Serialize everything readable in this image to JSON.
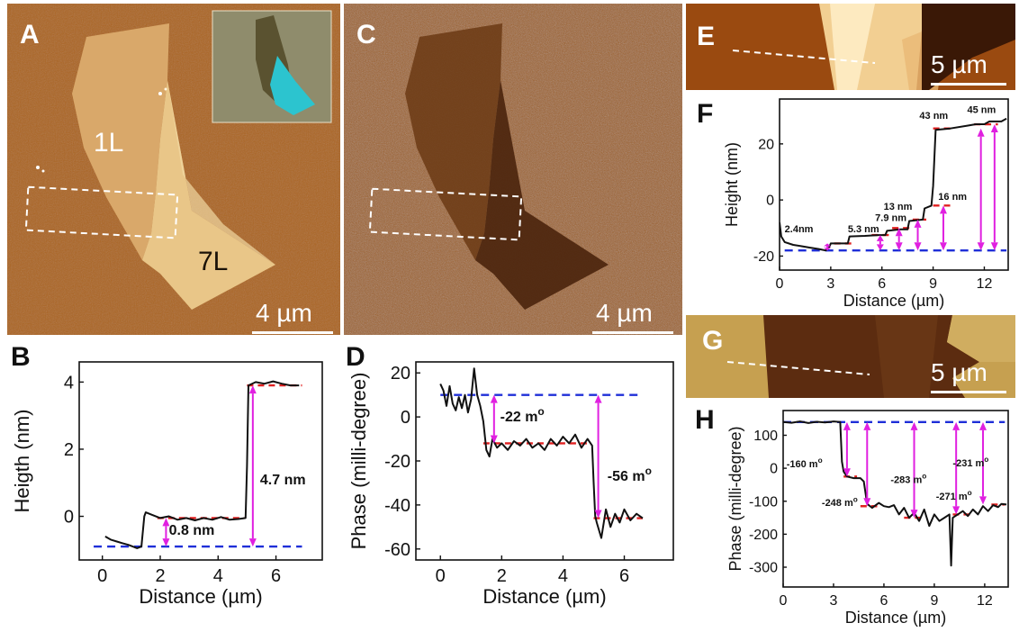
{
  "panels": {
    "A": {
      "label": "A",
      "scale": "4 µm",
      "region_1": "1L",
      "region_2": "7L"
    },
    "C": {
      "label": "C",
      "scale": "4 µm"
    },
    "E": {
      "label": "E",
      "scale": "5 µm"
    },
    "G": {
      "label": "G",
      "scale": "5 µm"
    },
    "B": {
      "label": "B"
    },
    "D": {
      "label": "D"
    },
    "F": {
      "label": "F"
    },
    "H": {
      "label": "H"
    }
  },
  "chart_data": [
    {
      "id": "B",
      "type": "line",
      "xlabel": "Distance (µm)",
      "ylabel": "Heigth (nm)",
      "xlim": [
        -0.8,
        7.6
      ],
      "ylim": [
        -1.3,
        4.6
      ],
      "xticks": [
        0,
        2,
        4,
        6
      ],
      "yticks": [
        0,
        2,
        4
      ],
      "series": [
        {
          "values": [
            [
              0.1,
              -0.6
            ],
            [
              0.3,
              -0.7
            ],
            [
              0.5,
              -0.75
            ],
            [
              0.7,
              -0.8
            ],
            [
              0.9,
              -0.85
            ],
            [
              1.05,
              -0.9
            ],
            [
              1.2,
              -0.95
            ],
            [
              1.35,
              -0.9
            ],
            [
              1.45,
              0.0
            ],
            [
              1.5,
              0.12
            ],
            [
              1.7,
              0.05
            ],
            [
              2.0,
              -0.05
            ],
            [
              2.3,
              0.0
            ],
            [
              2.6,
              -0.1
            ],
            [
              2.9,
              -0.05
            ],
            [
              3.2,
              -0.12
            ],
            [
              3.5,
              -0.05
            ],
            [
              3.8,
              -0.1
            ],
            [
              4.1,
              -0.02
            ],
            [
              4.4,
              -0.1
            ],
            [
              4.7,
              -0.08
            ],
            [
              4.95,
              -0.05
            ],
            [
              5.0,
              1.5
            ],
            [
              5.05,
              3.9
            ],
            [
              5.3,
              4.0
            ],
            [
              5.6,
              3.95
            ],
            [
              5.9,
              4.02
            ],
            [
              6.2,
              3.95
            ],
            [
              6.5,
              3.9
            ],
            [
              6.8,
              3.9
            ]
          ]
        }
      ],
      "reference_lines": [
        {
          "style": "blue-dashed",
          "y": -0.9,
          "x": [
            -0.3,
            6.9
          ]
        },
        {
          "style": "red-dashed",
          "y": -0.05,
          "x": [
            1.9,
            4.9
          ]
        },
        {
          "style": "red-dashed",
          "y": 3.9,
          "x": [
            5.0,
            6.9
          ]
        }
      ],
      "arrows": [
        {
          "x": 2.2,
          "y": [
            -0.9,
            -0.05
          ]
        },
        {
          "x": 5.2,
          "y": [
            -0.9,
            3.9
          ]
        }
      ],
      "annotations": [
        {
          "text": "0.8 nm",
          "x": 2.3,
          "y": -0.55
        },
        {
          "text": "4.7 nm",
          "x": 5.45,
          "y": 0.95
        }
      ]
    },
    {
      "id": "D",
      "type": "line",
      "xlabel": "Distance (µm)",
      "ylabel": "Phase (milli-degree)",
      "xlim": [
        -0.8,
        7.6
      ],
      "ylim": [
        -65,
        25
      ],
      "xticks": [
        0,
        2,
        4,
        6
      ],
      "yticks": [
        -60,
        -40,
        -20,
        0,
        20
      ],
      "series": [
        {
          "values": [
            [
              0.0,
              15
            ],
            [
              0.1,
              12
            ],
            [
              0.2,
              5
            ],
            [
              0.3,
              14
            ],
            [
              0.4,
              6
            ],
            [
              0.5,
              3
            ],
            [
              0.6,
              9
            ],
            [
              0.7,
              4
            ],
            [
              0.8,
              10
            ],
            [
              0.9,
              2
            ],
            [
              1.0,
              8
            ],
            [
              1.1,
              22
            ],
            [
              1.2,
              10
            ],
            [
              1.3,
              5
            ],
            [
              1.4,
              -2
            ],
            [
              1.5,
              -15
            ],
            [
              1.6,
              -18
            ],
            [
              1.7,
              -10
            ],
            [
              1.85,
              -14
            ],
            [
              2.0,
              -12
            ],
            [
              2.2,
              -15
            ],
            [
              2.4,
              -11
            ],
            [
              2.6,
              -13
            ],
            [
              2.8,
              -10
            ],
            [
              3.0,
              -14
            ],
            [
              3.2,
              -12
            ],
            [
              3.4,
              -15
            ],
            [
              3.6,
              -10
            ],
            [
              3.8,
              -13
            ],
            [
              4.0,
              -9
            ],
            [
              4.2,
              -12
            ],
            [
              4.4,
              -8
            ],
            [
              4.6,
              -14
            ],
            [
              4.8,
              -10
            ],
            [
              4.95,
              -13
            ],
            [
              5.0,
              -30
            ],
            [
              5.05,
              -45
            ],
            [
              5.1,
              -48
            ],
            [
              5.25,
              -55
            ],
            [
              5.4,
              -42
            ],
            [
              5.55,
              -50
            ],
            [
              5.7,
              -44
            ],
            [
              5.85,
              -48
            ],
            [
              6.0,
              -42
            ],
            [
              6.2,
              -47
            ],
            [
              6.4,
              -44
            ],
            [
              6.6,
              -46
            ]
          ]
        }
      ],
      "reference_lines": [
        {
          "style": "blue-dashed",
          "y": 10,
          "x": [
            0.0,
            6.6
          ]
        },
        {
          "style": "red-dashed",
          "y": -12,
          "x": [
            1.4,
            4.9
          ]
        },
        {
          "style": "red-dashed",
          "y": -46,
          "x": [
            5.0,
            6.6
          ]
        }
      ],
      "arrows": [
        {
          "x": 1.75,
          "y": [
            -12,
            10
          ]
        },
        {
          "x": 5.15,
          "y": [
            -46,
            10
          ]
        }
      ],
      "annotations": [
        {
          "text": "-22 m",
          "sup": "o",
          "x": 1.95,
          "y": -2
        },
        {
          "text": "-56 m",
          "sup": "o",
          "x": 5.45,
          "y": -29
        }
      ]
    },
    {
      "id": "F",
      "type": "line",
      "xlabel": "Distance (µm)",
      "ylabel": "Height (nm)",
      "xlim": [
        0,
        13.4
      ],
      "ylim": [
        -25,
        36
      ],
      "xticks": [
        0,
        3,
        6,
        9,
        12
      ],
      "yticks": [
        -20,
        0,
        20
      ],
      "series": [
        {
          "values": [
            [
              0,
              -8
            ],
            [
              0.1,
              -13
            ],
            [
              0.3,
              -15
            ],
            [
              0.8,
              -16
            ],
            [
              1.3,
              -16.5
            ],
            [
              1.8,
              -17
            ],
            [
              2.3,
              -17.5
            ],
            [
              2.7,
              -18
            ],
            [
              2.9,
              -17
            ],
            [
              3.0,
              -15.5
            ],
            [
              3.6,
              -15.5
            ],
            [
              4.0,
              -15.5
            ],
            [
              4.1,
              -13
            ],
            [
              5.0,
              -12.8
            ],
            [
              5.8,
              -12.5
            ],
            [
              6.2,
              -12.5
            ],
            [
              6.3,
              -11
            ],
            [
              7.1,
              -10.5
            ],
            [
              7.5,
              -10.5
            ],
            [
              7.6,
              -7.5
            ],
            [
              8.4,
              -7
            ],
            [
              8.5,
              -3
            ],
            [
              8.9,
              -2
            ],
            [
              9.0,
              5
            ],
            [
              9.15,
              25
            ],
            [
              10.0,
              25.5
            ],
            [
              11.0,
              26.5
            ],
            [
              11.5,
              27
            ],
            [
              12.0,
              27
            ],
            [
              12.3,
              28
            ],
            [
              13.0,
              28
            ],
            [
              13.3,
              29
            ]
          ]
        }
      ],
      "reference_lines": [
        {
          "style": "blue-dashed",
          "y": -18,
          "x": [
            0.3,
            13.3
          ]
        },
        {
          "style": "red-dashed",
          "y": -15.5,
          "x": [
            3.2,
            4.3
          ]
        },
        {
          "style": "red-dashed",
          "y": -12.5,
          "x": [
            5.4,
            6.6
          ]
        },
        {
          "style": "red-dashed",
          "y": -10,
          "x": [
            6.6,
            7.8
          ]
        },
        {
          "style": "red-dashed",
          "y": -7,
          "x": [
            7.8,
            8.6
          ]
        },
        {
          "style": "red-dashed",
          "y": -2,
          "x": [
            9.0,
            10.0
          ]
        },
        {
          "style": "red-dashed",
          "y": 25.5,
          "x": [
            9.0,
            10.0
          ]
        },
        {
          "style": "red-dashed",
          "y": 27,
          "x": [
            11.4,
            12.8
          ]
        }
      ],
      "arrows": [
        {
          "x": 2.8,
          "y": [
            -18,
            -15.5
          ]
        },
        {
          "x": 5.9,
          "y": [
            -18,
            -12.5
          ]
        },
        {
          "x": 7.0,
          "y": [
            -18,
            -10
          ]
        },
        {
          "x": 8.1,
          "y": [
            -18,
            -7
          ]
        },
        {
          "x": 9.6,
          "y": [
            -18,
            -2
          ]
        },
        {
          "x": 11.8,
          "y": [
            -18,
            25.5
          ]
        },
        {
          "x": 12.6,
          "y": [
            -18,
            27
          ]
        }
      ],
      "annotations": [
        {
          "text": "2.4nm",
          "x": 0.3,
          "y": -11.5
        },
        {
          "text": "5.3 nm",
          "x": 4.0,
          "y": -11.5
        },
        {
          "text": "7.9 nm",
          "x": 5.6,
          "y": -7.5
        },
        {
          "text": "13 nm",
          "x": 6.1,
          "y": -3.5
        },
        {
          "text": "16 nm",
          "x": 9.3,
          "y": 0
        },
        {
          "text": "43 nm",
          "x": 8.2,
          "y": 29
        },
        {
          "text": "45 nm",
          "x": 11.0,
          "y": 31
        }
      ]
    },
    {
      "id": "H",
      "type": "line",
      "xlabel": "Distance (µm)",
      "ylabel": "Phase (milli-degree)",
      "xlim": [
        0,
        13.4
      ],
      "ylim": [
        -360,
        175
      ],
      "xticks": [
        0,
        3,
        6,
        9,
        12
      ],
      "yticks": [
        -300,
        -200,
        -100,
        0,
        100
      ],
      "series": [
        {
          "values": [
            [
              0.0,
              140
            ],
            [
              0.5,
              138
            ],
            [
              1.0,
              142
            ],
            [
              1.5,
              137
            ],
            [
              2.0,
              141
            ],
            [
              2.5,
              139
            ],
            [
              3.0,
              142
            ],
            [
              3.4,
              140
            ],
            [
              3.5,
              20
            ],
            [
              3.6,
              -10
            ],
            [
              3.8,
              -25
            ],
            [
              4.2,
              -30
            ],
            [
              4.6,
              -30
            ],
            [
              4.8,
              -40
            ],
            [
              5.0,
              -108
            ],
            [
              5.3,
              -120
            ],
            [
              5.7,
              -105
            ],
            [
              6.0,
              -115
            ],
            [
              6.3,
              -118
            ],
            [
              6.6,
              -112
            ],
            [
              6.9,
              -140
            ],
            [
              7.2,
              -120
            ],
            [
              7.5,
              -150
            ],
            [
              7.8,
              -135
            ],
            [
              8.1,
              -160
            ],
            [
              8.4,
              -125
            ],
            [
              8.7,
              -175
            ],
            [
              9.0,
              -140
            ],
            [
              9.3,
              -160
            ],
            [
              9.6,
              -150
            ],
            [
              9.9,
              -140
            ],
            [
              10.0,
              -295
            ],
            [
              10.1,
              -150
            ],
            [
              10.4,
              -140
            ],
            [
              10.7,
              -130
            ],
            [
              11.0,
              -145
            ],
            [
              11.3,
              -125
            ],
            [
              11.6,
              -140
            ],
            [
              11.9,
              -115
            ],
            [
              12.2,
              -130
            ],
            [
              12.5,
              -112
            ],
            [
              12.8,
              -118
            ],
            [
              13.0,
              -108
            ],
            [
              13.3,
              -110
            ]
          ]
        }
      ],
      "reference_lines": [
        {
          "style": "blue-dashed",
          "y": 140,
          "x": [
            0.0,
            13.2
          ]
        },
        {
          "style": "red-dashed",
          "y": -25,
          "x": [
            3.6,
            4.4
          ]
        },
        {
          "style": "red-dashed",
          "y": -115,
          "x": [
            4.6,
            5.6
          ]
        },
        {
          "style": "red-dashed",
          "y": -150,
          "x": [
            7.2,
            8.4
          ]
        },
        {
          "style": "red-dashed",
          "y": -140,
          "x": [
            10.1,
            11.2
          ]
        },
        {
          "style": "red-dashed",
          "y": -110,
          "x": [
            12.4,
            13.2
          ]
        }
      ],
      "arrows": [
        {
          "x": 3.8,
          "y": [
            -25,
            140
          ]
        },
        {
          "x": 5.0,
          "y": [
            -115,
            140
          ]
        },
        {
          "x": 7.8,
          "y": [
            -150,
            140
          ]
        },
        {
          "x": 10.3,
          "y": [
            -140,
            140
          ]
        },
        {
          "x": 11.9,
          "y": [
            -110,
            140
          ]
        }
      ],
      "annotations": [
        {
          "text": "-160 m",
          "sup": "o",
          "x": 0.2,
          "y": 3
        },
        {
          "text": "-248 m",
          "sup": "o",
          "x": 2.3,
          "y": -115
        },
        {
          "text": "-283 m",
          "sup": "o",
          "x": 6.4,
          "y": -45
        },
        {
          "text": "-271 m",
          "sup": "o",
          "x": 9.1,
          "y": -95
        },
        {
          "text": "-231 m",
          "sup": "o",
          "x": 10.1,
          "y": 6
        }
      ]
    }
  ]
}
